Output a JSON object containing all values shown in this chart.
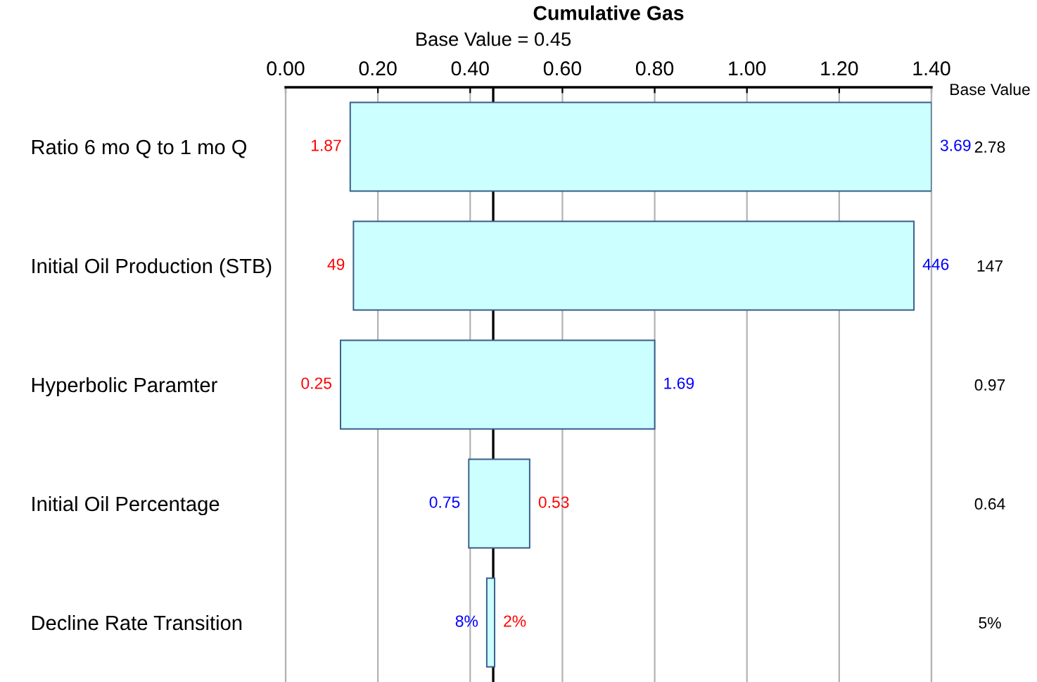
{
  "chart_data": {
    "type": "bar",
    "orientation": "horizontal",
    "title": "Cumulative Gas",
    "categories": [
      "Ratio 6 mo Q to 1 mo Q",
      "Initial Oil Production (STB)",
      "Hyperbolic Paramter",
      "Initial Oil Percentage",
      "Decline Rate Transition"
    ],
    "base": [
      0.14,
      0.147,
      0.119,
      0.397,
      0.436
    ],
    "values": [
      1.26,
      1.215,
      0.681,
      0.132,
      0.017
    ],
    "color": "#ccffff",
    "xlim": [
      0,
      1.4
    ],
    "xticks": [
      {
        "value": 0,
        "label": "0.00"
      },
      {
        "value": 0.2,
        "label": "0.20"
      },
      {
        "value": 0.4,
        "label": "0.40"
      },
      {
        "value": 0.6,
        "label": "0.60"
      },
      {
        "value": 0.8,
        "label": "0.80"
      },
      {
        "value": 1.0,
        "label": "1.00"
      },
      {
        "value": 1.2,
        "label": "1.20"
      },
      {
        "value": 1.4,
        "label": "1.40"
      }
    ],
    "grid": "x",
    "ref_lines": [
      {
        "axis": "x",
        "value": 0.45,
        "label": "Base Value = 0.45",
        "color": "#000000"
      }
    ],
    "y2label": "Base Value",
    "y2_categories": [
      "2.78",
      "147",
      "0.97",
      "0.64",
      "5%"
    ],
    "annotations": [
      {
        "text": "1.87",
        "x": 0.14,
        "y": "Ratio 6 mo Q to 1 mo Q"
      },
      {
        "text": "3.69",
        "x": 1.4,
        "y": "Ratio 6 mo Q to 1 mo Q"
      },
      {
        "text": "49",
        "x": 0.147,
        "y": "Initial Oil Production (STB)"
      },
      {
        "text": "446",
        "x": 1.362,
        "y": "Initial Oil Production (STB)"
      },
      {
        "text": "0.25",
        "x": 0.119,
        "y": "Hyperbolic Paramter"
      },
      {
        "text": "1.69",
        "x": 0.8,
        "y": "Hyperbolic Paramter"
      },
      {
        "text": "0.53",
        "x": 0.529,
        "y": "Initial Oil Percentage"
      },
      {
        "text": "0.75",
        "x": 0.397,
        "y": "Initial Oil Percentage"
      },
      {
        "text": "2%",
        "x": 0.453,
        "y": "Decline Rate Transition"
      },
      {
        "text": "8%",
        "x": 0.436,
        "y": "Decline Rate Transition"
      }
    ]
  }
}
